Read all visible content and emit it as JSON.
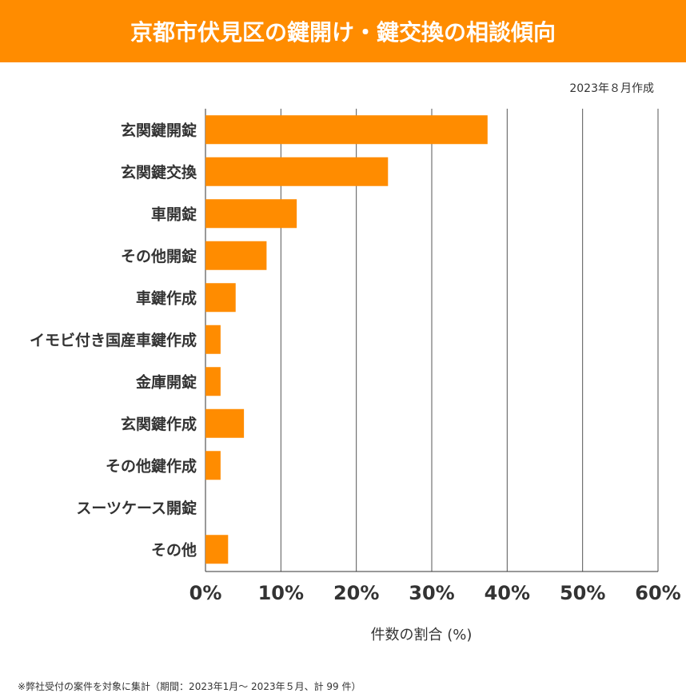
{
  "title": "京都市伏見区の鍵開け・鍵交換の相談傾向",
  "date_note": "2023年８月作成",
  "footnote": "※弊社受付の案件を対象に集計（期間：2023年1月～ 2023年５月、計 99 件）",
  "colors": {
    "bar": "#FF8C00",
    "title_bg": "#FF8C00"
  },
  "chart_data": {
    "type": "bar",
    "orientation": "horizontal",
    "categories": [
      "玄関鍵開錠",
      "玄関鍵交換",
      "車開錠",
      "その他開錠",
      "車鍵作成",
      "イモビ付き国産車鍵作成",
      "金庫開錠",
      "玄関鍵作成",
      "その他鍵作成",
      "スーツケース開錠",
      "その他"
    ],
    "values": [
      37.4,
      24.2,
      12.1,
      8.1,
      4.0,
      2.0,
      2.0,
      5.1,
      2.0,
      0,
      3.0
    ],
    "xlabel": "件数の割合 (%)",
    "xlim": [
      0,
      60
    ],
    "xticks": [
      "0%",
      "10%",
      "20%",
      "30%",
      "40%",
      "50%",
      "60%"
    ],
    "grid": true
  }
}
